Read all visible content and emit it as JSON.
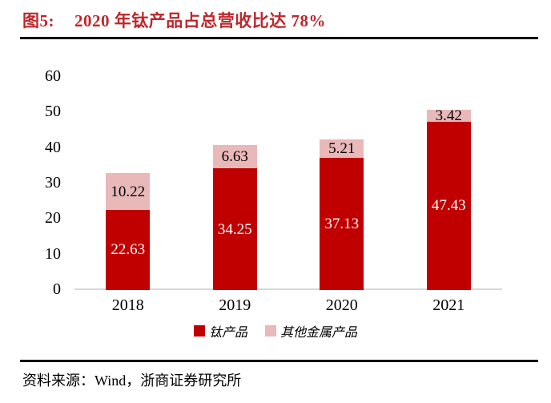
{
  "figure": {
    "title_prefix": "图5:",
    "title": "2020 年钛产品占总营收比达 78%",
    "source": "资料来源：Wind，浙商证券研究所"
  },
  "colors": {
    "title_red": "#be272c",
    "bar_red": "#c00000",
    "bar_pink": "#e9b8b9",
    "axis_line": "#d9d9d9",
    "rule_black": "#000000"
  },
  "chart_data": {
    "type": "bar",
    "stacked": true,
    "title": "2020 年钛产品占总营收比达 78%",
    "xlabel": "",
    "ylabel": "",
    "categories": [
      "2018",
      "2019",
      "2020",
      "2021"
    ],
    "series": [
      {
        "name": "钛产品",
        "color": "#c00000",
        "label_color": "#ffffff",
        "values": [
          22.63,
          34.25,
          37.13,
          47.43
        ]
      },
      {
        "name": "其他金属产品",
        "color": "#e9b8b9",
        "label_color": "#000000",
        "values": [
          10.22,
          6.63,
          5.21,
          3.42
        ]
      }
    ],
    "ylim": [
      0,
      60
    ],
    "yticks": [
      0,
      10,
      20,
      30,
      40,
      50,
      60
    ],
    "grid": false,
    "legend_position": "bottom",
    "value_labels": true
  }
}
